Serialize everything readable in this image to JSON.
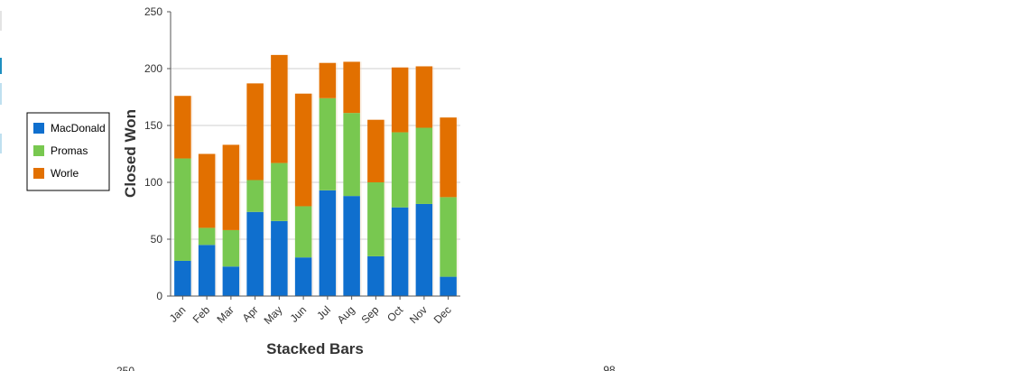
{
  "colors": {
    "macdonald": "#0f6fce",
    "promas": "#78c850",
    "worle": "#e27000",
    "grid": "#cfcfcf",
    "axis": "#555555",
    "text": "#333333",
    "edge_teal": "#1e8fc0",
    "edge_light": "#bfe0ef"
  },
  "chart_data": {
    "type": "bar",
    "stacked": true,
    "title": "",
    "xlabel": "Stacked Bars",
    "ylabel": "Closed Won",
    "ylim": [
      0,
      250
    ],
    "yticks": [
      0,
      50,
      100,
      150,
      200,
      250
    ],
    "grid": true,
    "legend_position": "left",
    "categories": [
      "Jan",
      "Feb",
      "Mar",
      "Apr",
      "May",
      "Jun",
      "Jul",
      "Aug",
      "Sep",
      "Oct",
      "Nov",
      "Dec"
    ],
    "series": [
      {
        "name": "MacDonald",
        "color_key": "macdonald",
        "values": [
          31,
          45,
          26,
          74,
          66,
          34,
          93,
          88,
          35,
          78,
          81,
          17
        ]
      },
      {
        "name": "Promas",
        "color_key": "promas",
        "values": [
          90,
          15,
          32,
          28,
          51,
          45,
          81,
          73,
          65,
          66,
          67,
          70
        ]
      },
      {
        "name": "Worle",
        "color_key": "worle",
        "values": [
          55,
          65,
          75,
          85,
          95,
          99,
          31,
          45,
          55,
          57,
          54,
          70
        ]
      }
    ]
  },
  "next_chart_partial": {
    "y_tick_label": "250",
    "label_right": "98"
  }
}
